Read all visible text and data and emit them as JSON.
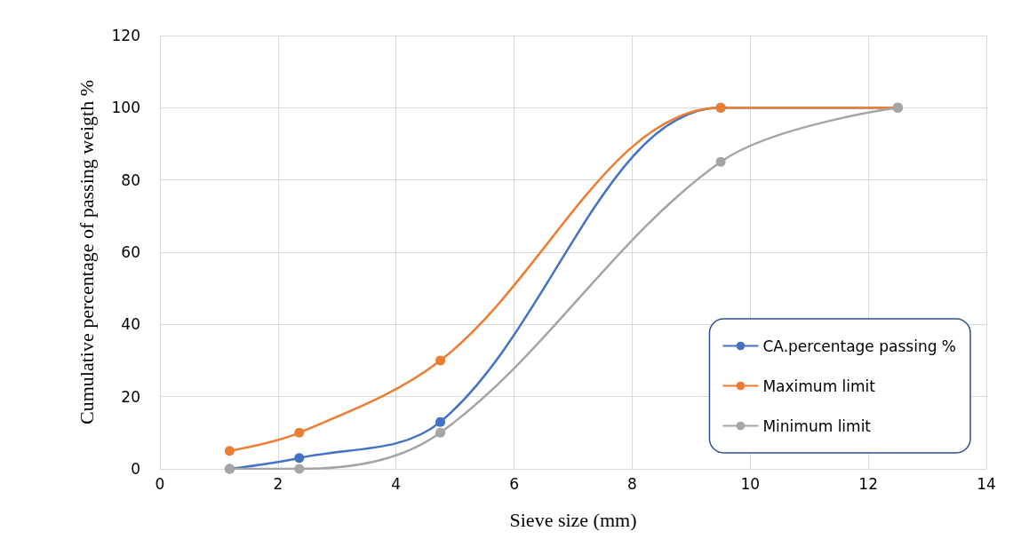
{
  "chart_data": {
    "type": "line",
    "xlabel": "Sieve size (mm)",
    "ylabel": "Cumulative percentage of passing weigth %",
    "x": [
      1.18,
      2.36,
      4.75,
      9.5,
      12.5
    ],
    "series": [
      {
        "name": "CA.percentage passing %",
        "color": "#4472c4",
        "values": [
          0,
          3,
          13,
          100,
          100
        ]
      },
      {
        "name": "Maximum limit",
        "color": "#ed7d31",
        "values": [
          5,
          10,
          30,
          100,
          100
        ]
      },
      {
        "name": "Minimum limit",
        "color": "#a5a5a5",
        "values": [
          0,
          0,
          10,
          85,
          100
        ]
      }
    ],
    "xlim": [
      0,
      14
    ],
    "xticks": [
      0,
      2,
      4,
      6,
      8,
      10,
      12,
      14
    ],
    "ylim": [
      0,
      120
    ],
    "yticks": [
      0,
      20,
      40,
      60,
      80,
      100,
      120
    ],
    "grid": true,
    "legend": "bottom right",
    "marker": "circle",
    "line_style": "solid"
  }
}
